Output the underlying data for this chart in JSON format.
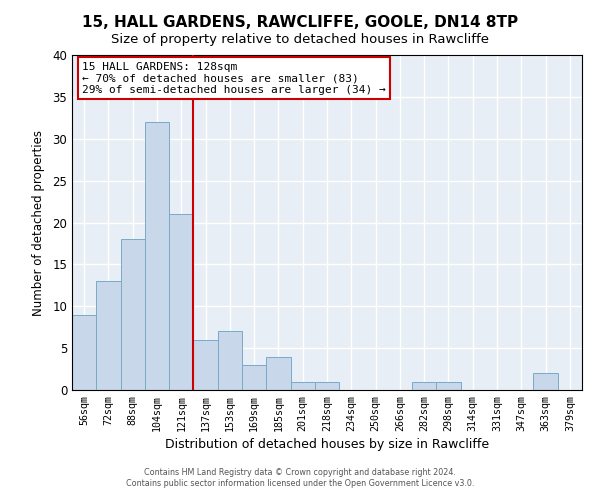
{
  "title": "15, HALL GARDENS, RAWCLIFFE, GOOLE, DN14 8TP",
  "subtitle": "Size of property relative to detached houses in Rawcliffe",
  "xlabel": "Distribution of detached houses by size in Rawcliffe",
  "ylabel": "Number of detached properties",
  "bin_labels": [
    "56sqm",
    "72sqm",
    "88sqm",
    "104sqm",
    "121sqm",
    "137sqm",
    "153sqm",
    "169sqm",
    "185sqm",
    "201sqm",
    "218sqm",
    "234sqm",
    "250sqm",
    "266sqm",
    "282sqm",
    "298sqm",
    "314sqm",
    "331sqm",
    "347sqm",
    "363sqm",
    "379sqm"
  ],
  "bar_heights": [
    9,
    13,
    18,
    32,
    21,
    6,
    7,
    3,
    4,
    1,
    1,
    0,
    0,
    0,
    1,
    1,
    0,
    0,
    0,
    2,
    0
  ],
  "bar_color": "#c8d8ea",
  "bar_edge_color": "#7aaac8",
  "vline_color": "#cc0000",
  "ylim": [
    0,
    40
  ],
  "yticks": [
    0,
    5,
    10,
    15,
    20,
    25,
    30,
    35,
    40
  ],
  "annotation_title": "15 HALL GARDENS: 128sqm",
  "annotation_line1": "← 70% of detached houses are smaller (83)",
  "annotation_line2": "29% of semi-detached houses are larger (34) →",
  "annotation_box_color": "#ffffff",
  "annotation_box_edge": "#cc0000",
  "footer1": "Contains HM Land Registry data © Crown copyright and database right 2024.",
  "footer2": "Contains public sector information licensed under the Open Government Licence v3.0.",
  "background_color": "#ffffff",
  "plot_bg_color": "#e8eef5",
  "grid_color": "#ffffff",
  "title_fontsize": 11,
  "subtitle_fontsize": 9.5
}
